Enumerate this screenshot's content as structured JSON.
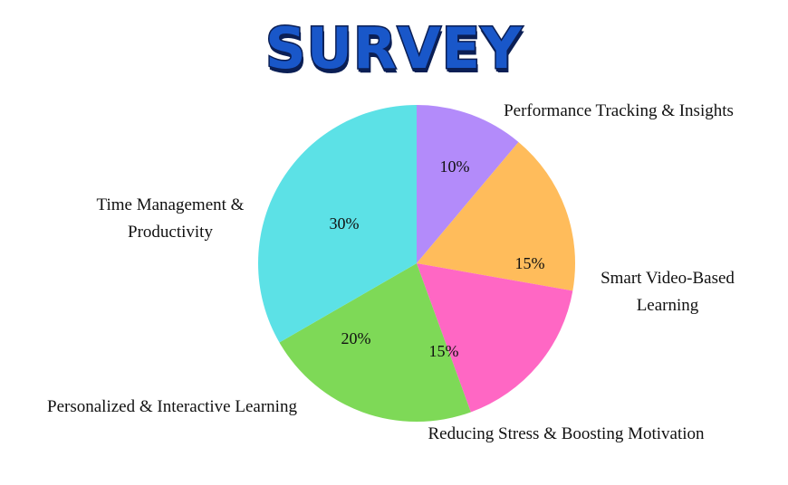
{
  "chart_data": {
    "type": "pie",
    "title": "SURVEY",
    "slices": [
      {
        "label": "Performance Tracking & Insights",
        "lines": [
          "Performance Tracking & Insights"
        ],
        "value": 10,
        "value_label": "10%",
        "color": "#b38bfa"
      },
      {
        "label": "Smart Video-Based Learning",
        "lines": [
          "Smart Video-Based",
          "Learning"
        ],
        "value": 15,
        "value_label": "15%",
        "color": "#ffbc5b"
      },
      {
        "label": "Reducing Stress & Boosting Motivation",
        "lines": [
          "Reducing Stress & Boosting Motivation"
        ],
        "value": 15,
        "value_label": "15%",
        "color": "#ff67c4"
      },
      {
        "label": "Personalized & Interactive Learning",
        "lines": [
          "Personalized & Interactive Learning"
        ],
        "value": 20,
        "value_label": "20%",
        "color": "#7ed957"
      },
      {
        "label": "Time Management & Productivity",
        "lines": [
          "Time Management &",
          "Productivity"
        ],
        "value": 30,
        "value_label": "30%",
        "color": "#5ce1e6"
      }
    ]
  }
}
